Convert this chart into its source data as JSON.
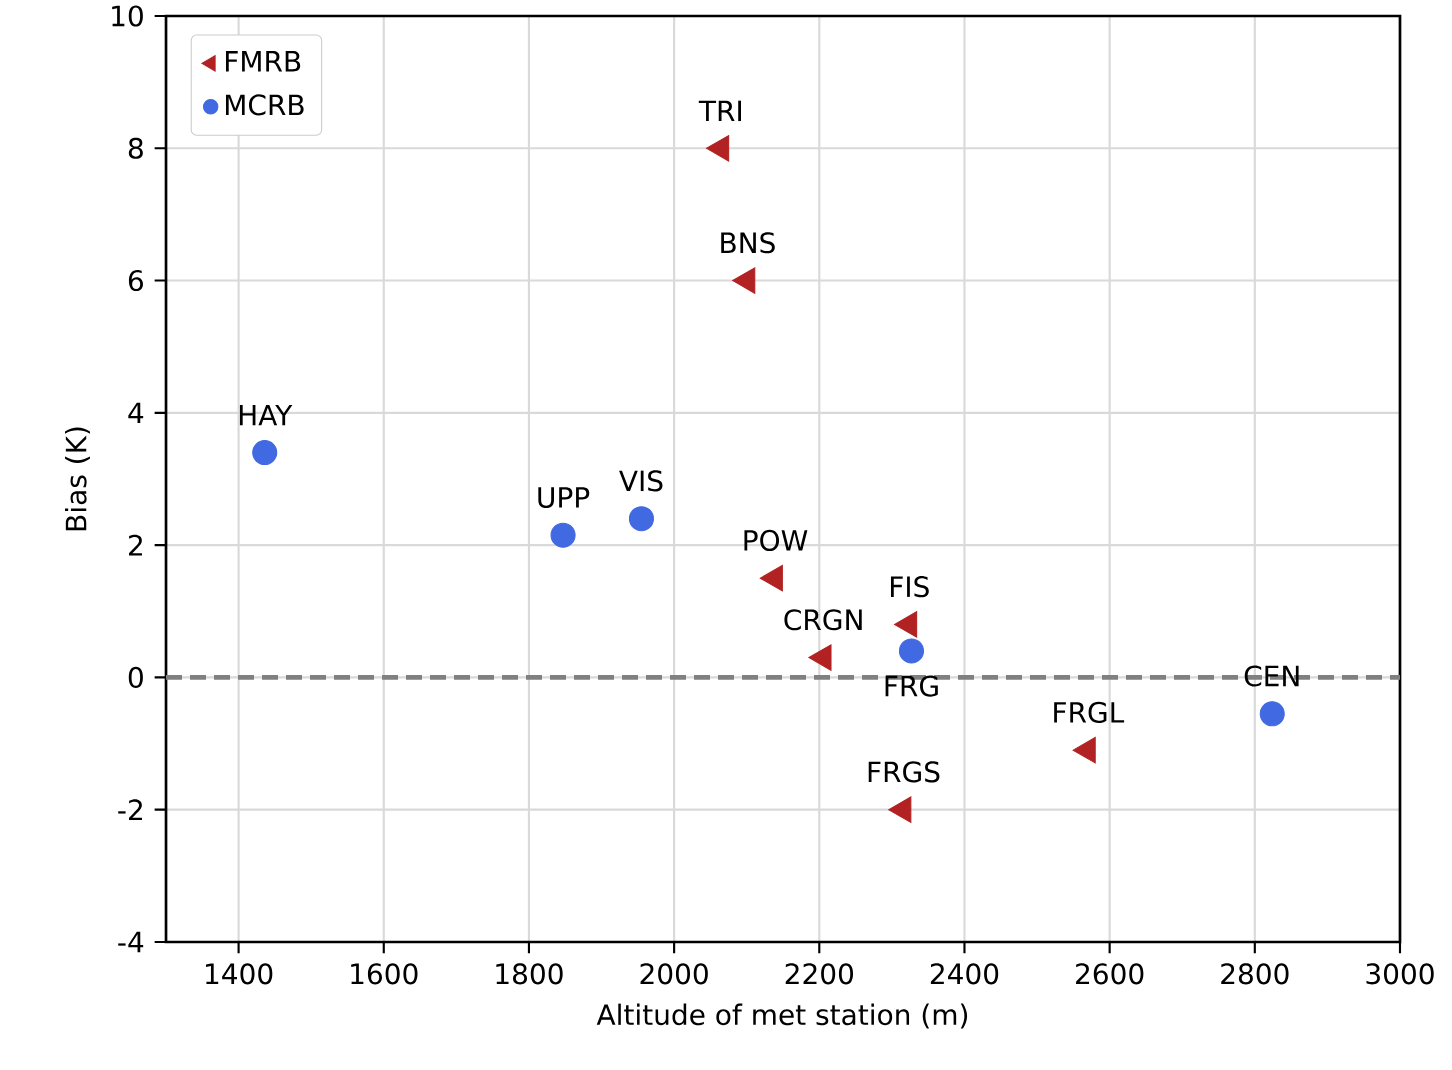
{
  "chart_data": {
    "type": "scatter",
    "xlabel": "Altitude of met station (m)",
    "ylabel": "Bias (K)",
    "series": [
      {
        "name": "FMRB",
        "color": "#b22222",
        "marker": "triangle",
        "x": [
          2065,
          2101,
          2139,
          2206,
          2324,
          2316,
          2570
        ],
        "values": [
          8,
          6,
          1.5,
          0.3,
          0.8,
          -2,
          -1.1
        ]
      },
      {
        "name": "MCRB",
        "color": "#4169e1",
        "marker": "circle",
        "x": [
          1436,
          1847,
          1955,
          2327,
          2824
        ],
        "values": [
          3.4,
          2.15,
          2.4,
          0.4,
          -0.55
        ]
      }
    ],
    "annotations": [
      {
        "text": "TRI",
        "x": 2065,
        "y": 8
      },
      {
        "text": "BNS",
        "x": 2101,
        "y": 6
      },
      {
        "text": "POW",
        "x": 2139,
        "y": 1.5
      },
      {
        "text": "CRGN",
        "x": 2206,
        "y": 0.3
      },
      {
        "text": "FIS",
        "x": 2324,
        "y": 0.8
      },
      {
        "text": "FRGS",
        "x": 2316,
        "y": -2
      },
      {
        "text": "FRGL",
        "x": 2570,
        "y": -1.1
      },
      {
        "text": "HAY",
        "x": 1436,
        "y": 3.4
      },
      {
        "text": "UPP",
        "x": 1847,
        "y": 2.15
      },
      {
        "text": "VIS",
        "x": 1955,
        "y": 2.4
      },
      {
        "text": "FRG",
        "x": 2327,
        "y": 0.4
      },
      {
        "text": "CEN",
        "x": 2824,
        "y": -0.55
      }
    ],
    "ref_lines": [
      {
        "axis": "y",
        "value": 0,
        "color": "#808080",
        "line_style": "dashed"
      }
    ],
    "xlim": [
      1300,
      3000
    ],
    "ylim": [
      -4,
      10
    ],
    "xticks": [
      1400,
      1600,
      1800,
      2000,
      2200,
      2400,
      2600,
      2800,
      3000
    ],
    "yticks": [
      -4,
      -2,
      0,
      2,
      4,
      6,
      8,
      10
    ],
    "grid": true,
    "legend": "top left"
  }
}
